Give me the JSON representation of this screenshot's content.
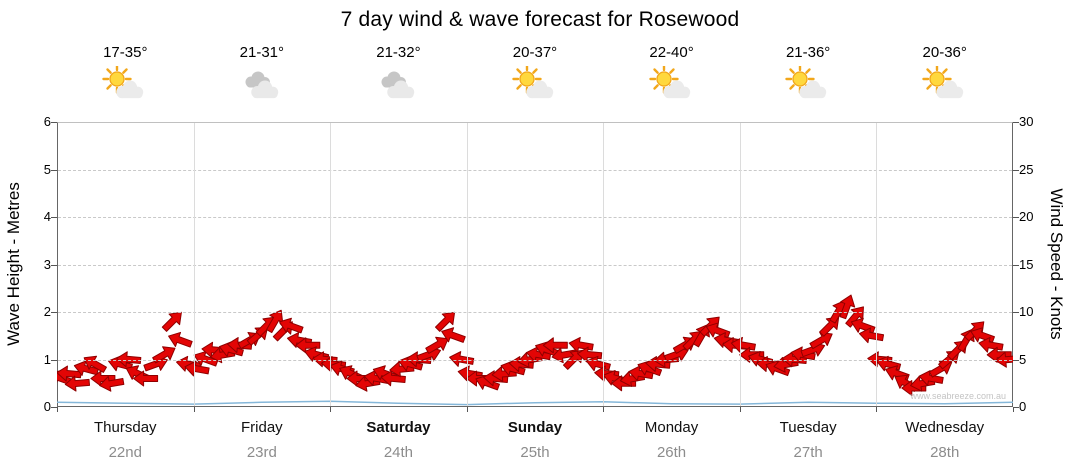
{
  "title": "7 day wind & wave forecast for Rosewood",
  "watermark": "www.seabreeze.com.au",
  "axes": {
    "left_label": "Wave Height - Metres",
    "right_label": "Wind Speed - Knots",
    "left_ticks": [
      0,
      1,
      2,
      3,
      4,
      5,
      6
    ],
    "right_ticks": [
      0,
      5,
      10,
      15,
      20,
      25,
      30
    ]
  },
  "days": [
    {
      "name": "Thursday",
      "date": "22nd",
      "temp": "17-35°",
      "icon": "partly-sunny",
      "bold": false
    },
    {
      "name": "Friday",
      "date": "23rd",
      "temp": "21-31°",
      "icon": "cloudy",
      "bold": false
    },
    {
      "name": "Saturday",
      "date": "24th",
      "temp": "21-32°",
      "icon": "cloudy",
      "bold": true
    },
    {
      "name": "Sunday",
      "date": "25th",
      "temp": "20-37°",
      "icon": "partly-sunny",
      "bold": true
    },
    {
      "name": "Monday",
      "date": "26th",
      "temp": "22-40°",
      "icon": "partly-sunny",
      "bold": false
    },
    {
      "name": "Tuesday",
      "date": "27th",
      "temp": "21-36°",
      "icon": "partly-sunny",
      "bold": false
    },
    {
      "name": "Wednesday",
      "date": "28th",
      "temp": "20-36°",
      "icon": "partly-sunny",
      "bold": false
    }
  ],
  "chart_data": {
    "type": "scatter",
    "marker": "wind-arrow",
    "title": "7 day wind & wave forecast for Rosewood",
    "categories": [
      "Thursday 22nd",
      "Friday 23rd",
      "Saturday 24th",
      "Sunday 25th",
      "Monday 26th",
      "Tuesday 27th",
      "Wednesday 28th"
    ],
    "points_per_day": 16,
    "ylim_left_wave_m": [
      0,
      6
    ],
    "ylim_right_wind_knots": [
      0,
      30
    ],
    "grid": true,
    "legend": "none",
    "series": [
      {
        "name": "Wind Speed",
        "unit": "knots",
        "axis": "right",
        "values": [
          3,
          3.5,
          2.5,
          4,
          4.5,
          3,
          2.5,
          4.5,
          5,
          3.5,
          3,
          4.5,
          5.5,
          9,
          7,
          4.5,
          4,
          5,
          6,
          5.5,
          6,
          6.5,
          7,
          7.5,
          8.5,
          9,
          8,
          8.5,
          7,
          6.5,
          5.5,
          5,
          4.5,
          4,
          3.5,
          3,
          2.5,
          3,
          3.5,
          3,
          4,
          4.5,
          5,
          5.5,
          6.5,
          9,
          7.5,
          5,
          3.5,
          3,
          2.5,
          3,
          3.5,
          4,
          4.5,
          5,
          5.5,
          6,
          6.5,
          5.5,
          5,
          6.5,
          5.5,
          4.5,
          3.5,
          3,
          2.5,
          3,
          3.5,
          4,
          4.5,
          5,
          5.5,
          6.5,
          7,
          7.5,
          8.5,
          8,
          7,
          6.5,
          6.5,
          5.5,
          5,
          4.5,
          4,
          4.5,
          5,
          5.5,
          6,
          7,
          8.5,
          10,
          10.5,
          9.5,
          8.5,
          7.5,
          5,
          4.5,
          3.5,
          2.5,
          2,
          2.5,
          3,
          4,
          5,
          6,
          7,
          8,
          7.5,
          6.5,
          5.5,
          5
        ],
        "directions_deg": [
          200,
          185,
          175,
          195,
          210,
          180,
          170,
          195,
          185,
          205,
          180,
          340,
          330,
          315,
          200,
          190,
          190,
          200,
          185,
          170,
          195,
          185,
          330,
          320,
          315,
          300,
          315,
          200,
          190,
          180,
          195,
          185,
          185,
          195,
          205,
          180,
          170,
          190,
          200,
          185,
          175,
          195,
          185,
          340,
          330,
          315,
          200,
          190,
          190,
          180,
          200,
          185,
          175,
          195,
          185,
          170,
          190,
          200,
          180,
          170,
          315,
          190,
          185,
          195,
          185,
          195,
          180,
          170,
          190,
          200,
          185,
          175,
          340,
          330,
          315,
          300,
          315,
          200,
          190,
          185,
          190,
          180,
          195,
          185,
          200,
          170,
          185,
          190,
          340,
          330,
          315,
          300,
          290,
          310,
          200,
          190,
          185,
          195,
          200,
          210,
          180,
          170,
          190,
          330,
          320,
          315,
          300,
          315,
          200,
          190,
          180,
          175
        ]
      },
      {
        "name": "Wave Height",
        "unit": "m",
        "axis": "left",
        "values": [
          0.1,
          0.08,
          0.06,
          0.1,
          0.12,
          0.08,
          0.05,
          0.09,
          0.11,
          0.07,
          0.06,
          0.1,
          0.08,
          0.07,
          0.1
        ]
      }
    ]
  },
  "colors": {
    "arrow_fill": "#e30505",
    "arrow_stroke": "#8f0000",
    "wave_line": "#85b7d9",
    "grid_dash": "#c9c9c9",
    "day_separator": "#dcdcdc",
    "axis": "#666666",
    "date_text": "#8c8c8c",
    "watermark_text": "#c4c4c4"
  }
}
